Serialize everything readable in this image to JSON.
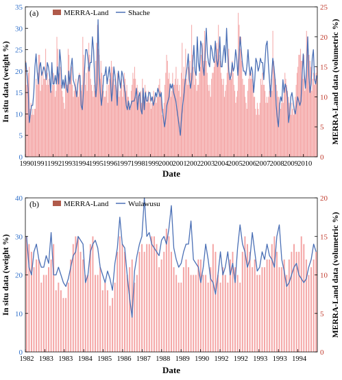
{
  "chart_data": [
    {
      "panel_label": "(a)",
      "type": "bar+line",
      "xlabel": "Date",
      "ylabel_left": "In situ data (weight %)",
      "ylabel_right": "MERRA-Land data (volumetric %)",
      "ylim_left": [
        0,
        35
      ],
      "ylim_right": [
        0,
        25
      ],
      "yticks_left": [
        "0",
        "5",
        "10",
        "15",
        "20",
        "25",
        "30",
        "35"
      ],
      "yticks_right": [
        "0",
        "5",
        "10",
        "15",
        "20",
        "25"
      ],
      "xticks": [
        "1990",
        "1991",
        "1992",
        "1993",
        "1994",
        "1995",
        "1996",
        "1997",
        "1998",
        "1999",
        "2000",
        "2001",
        "2002",
        "2003",
        "2004",
        "2005",
        "2006",
        "2007",
        "2008",
        "2009",
        "2010"
      ],
      "legend_position": "top-left",
      "series": [
        {
          "name": "MERRA-Land",
          "type": "bar",
          "axis": "right",
          "color": "#f4a4a4",
          "legend_color": "#b05a4a",
          "values": [
            16,
            12,
            13,
            14,
            15,
            8,
            9,
            7,
            8,
            7,
            8,
            8,
            13,
            12,
            14,
            17,
            17,
            11,
            14,
            12,
            15,
            13,
            13,
            18,
            12,
            14,
            12,
            13,
            13,
            12,
            11,
            12,
            14,
            12,
            10,
            11,
            20,
            18,
            13,
            14,
            15,
            12,
            11,
            10,
            9,
            8,
            13,
            12,
            12,
            18,
            17,
            13,
            14,
            15,
            12,
            10,
            11,
            12,
            13,
            11,
            11,
            10,
            14,
            12,
            11,
            12,
            20,
            17,
            15,
            12,
            14,
            11,
            15,
            19,
            17,
            13,
            12,
            11,
            10,
            12,
            11,
            16,
            19,
            22,
            18,
            17,
            13,
            16,
            14,
            12,
            11,
            10,
            10,
            11,
            12,
            9,
            12,
            13,
            14,
            16,
            15,
            14,
            13,
            12,
            13,
            11,
            14,
            12,
            10,
            11,
            12,
            13,
            10,
            12,
            14,
            13,
            11,
            12,
            10,
            10,
            9,
            8,
            11,
            12,
            14,
            13,
            15,
            13,
            10,
            12,
            11,
            10,
            10,
            11,
            9,
            13,
            11,
            10,
            12,
            11,
            9,
            10,
            11,
            9,
            10,
            8,
            9,
            10,
            11,
            9,
            10,
            9,
            10,
            10,
            12,
            13,
            11,
            10,
            7,
            8,
            9,
            12,
            14,
            17,
            16,
            13,
            14,
            12,
            10,
            11,
            14,
            12,
            12,
            13,
            15,
            12,
            13,
            11,
            12,
            10,
            14,
            19,
            13,
            15,
            13,
            18,
            13,
            12,
            15,
            12,
            16,
            14,
            22,
            17,
            15,
            12,
            14,
            13,
            11,
            12,
            12,
            14,
            15,
            17,
            18,
            19,
            16,
            21,
            18,
            16,
            14,
            12,
            11,
            12,
            10,
            13,
            14,
            14,
            15,
            16,
            17,
            19,
            18,
            22,
            17,
            16,
            14,
            13,
            12,
            13,
            10,
            11,
            12,
            14,
            17,
            18,
            13,
            14,
            13,
            16,
            14,
            12,
            11,
            9,
            10,
            11,
            24,
            22,
            18,
            20,
            16,
            13,
            12,
            12,
            10,
            9,
            8,
            11,
            13,
            14,
            13,
            14,
            13,
            12,
            10,
            10,
            8,
            7,
            9,
            8,
            7,
            9,
            13,
            12,
            14,
            12,
            12,
            11,
            9,
            10,
            9,
            10,
            11,
            12,
            13,
            11,
            21,
            16,
            14,
            13,
            12,
            11,
            10,
            10,
            9,
            8,
            9,
            10,
            9,
            11,
            14,
            13,
            12,
            11,
            10,
            9,
            8,
            7,
            9,
            8,
            7,
            8,
            10,
            12,
            14,
            15,
            17,
            17,
            18,
            16,
            16,
            13,
            17,
            11,
            12,
            21,
            20,
            18,
            17,
            16,
            15,
            11,
            13,
            14,
            12,
            13,
            14,
            15
          ]
        },
        {
          "name": "Shache",
          "type": "line",
          "axis": "left",
          "color": "#4a6fb5",
          "values": [
            22,
            19,
            16,
            8,
            10,
            12,
            12,
            15,
            21,
            24,
            20,
            17,
            21,
            22,
            19,
            20,
            21,
            20,
            18,
            22,
            21,
            19,
            15,
            22,
            17,
            17,
            19,
            17,
            21,
            17,
            25,
            22,
            16,
            18,
            16,
            19,
            16,
            15,
            20,
            17,
            21,
            23,
            18,
            17,
            16,
            14,
            17,
            19,
            19,
            12,
            11,
            15,
            20,
            25,
            25,
            23,
            20,
            22,
            22,
            28,
            25,
            18,
            14,
            17,
            32,
            20,
            15,
            12,
            15,
            19,
            19,
            21,
            17,
            19,
            21,
            18,
            13,
            16,
            21,
            19,
            16,
            12,
            20,
            18,
            16,
            20,
            19,
            17,
            15,
            12,
            11,
            13,
            11,
            12,
            13,
            13,
            13,
            14,
            16,
            11,
            14,
            15,
            11,
            10,
            16,
            11,
            15,
            13,
            13,
            15,
            15,
            13,
            14,
            12,
            13,
            15,
            14,
            16,
            15,
            14,
            15,
            11,
            9,
            7,
            9,
            12,
            13,
            14,
            17,
            16,
            17,
            15,
            14,
            13,
            11,
            9,
            7,
            5,
            9,
            12,
            14,
            17,
            19,
            21,
            24,
            18,
            16,
            18,
            22,
            26,
            20,
            19,
            28,
            22,
            20,
            27,
            26,
            21,
            19,
            24,
            30,
            24,
            22,
            21,
            26,
            25,
            23,
            22,
            27,
            23,
            21,
            23,
            28,
            21,
            21,
            24,
            26,
            22,
            30,
            24,
            20,
            18,
            19,
            22,
            20,
            21,
            25,
            23,
            19,
            23,
            28,
            25,
            22,
            20,
            20,
            19,
            21,
            25,
            21,
            19,
            21,
            20,
            15,
            18,
            23,
            22,
            20,
            21,
            23,
            22,
            22,
            18,
            22,
            26,
            27,
            22,
            18,
            14,
            19,
            23,
            21,
            18,
            12,
            9,
            7,
            12,
            14,
            13,
            18,
            15,
            17,
            16,
            14,
            8,
            10,
            14,
            15,
            13,
            11,
            10,
            12,
            14,
            13,
            12,
            13,
            19,
            24,
            19,
            16,
            21,
            28,
            19,
            15,
            17,
            23,
            25,
            18,
            17,
            19
          ]
        }
      ]
    },
    {
      "panel_label": "(b)",
      "type": "bar+line",
      "xlabel": "Date",
      "ylabel_left": "In situ data (weight %)",
      "ylabel_right": "MERRA-Land data (volumetric %)",
      "ylim_left": [
        0,
        40
      ],
      "ylim_right": [
        0,
        20
      ],
      "yticks_left": [
        "0",
        "10",
        "20",
        "30",
        "40"
      ],
      "yticks_right": [
        "0",
        "5",
        "10",
        "15",
        "20"
      ],
      "xticks": [
        "1982",
        "1983",
        "1983",
        "1984",
        "1985",
        "1986",
        "1987",
        "1988",
        "1989",
        "1990",
        "1992",
        "1992",
        "1993",
        "1993",
        "1994"
      ],
      "legend_position": "top-left",
      "series": [
        {
          "name": "MERRA-Land",
          "type": "bar",
          "axis": "right",
          "color": "#f4a4a4",
          "legend_color": "#b05a4a",
          "values": [
            15,
            14,
            13,
            11,
            12,
            12,
            9,
            10,
            10,
            11,
            12,
            14,
            8,
            9,
            8,
            7,
            7,
            9,
            12,
            14,
            15,
            15,
            13,
            12,
            10,
            10,
            14,
            15,
            10,
            10,
            11,
            8,
            9,
            8,
            6,
            7,
            9,
            13,
            15,
            14,
            13,
            10,
            11,
            12,
            9,
            10,
            13,
            14,
            13,
            14,
            14,
            15,
            15,
            14,
            11,
            12,
            13,
            16,
            15,
            13,
            11,
            10,
            9,
            9,
            11,
            12,
            11,
            10,
            10,
            10,
            12,
            12,
            10,
            10,
            9,
            11,
            14,
            13,
            10,
            9,
            11,
            10,
            9,
            12,
            13,
            11,
            10,
            9,
            13,
            15,
            14,
            13,
            11,
            12,
            10,
            10,
            11,
            11,
            12,
            12,
            14,
            15,
            13,
            11,
            11,
            12,
            10,
            12,
            13,
            14,
            13,
            13,
            15,
            14,
            12,
            10,
            11,
            12,
            13
          ]
        },
        {
          "name": "Wulawusu",
          "type": "line",
          "axis": "left",
          "color": "#4a6fb5",
          "values": [
            30,
            22,
            20,
            26,
            28,
            24,
            22,
            22,
            25,
            23,
            31,
            20,
            20,
            22,
            20,
            18,
            17,
            19,
            22,
            25,
            26,
            30,
            29,
            28,
            18,
            20,
            26,
            28,
            29,
            27,
            22,
            20,
            18,
            21,
            19,
            16,
            23,
            27,
            35,
            28,
            27,
            20,
            14,
            9,
            21,
            25,
            28,
            30,
            40,
            30,
            31,
            28,
            27,
            26,
            25,
            29,
            30,
            28,
            32,
            38,
            27,
            24,
            22,
            23,
            26,
            28,
            28,
            34,
            24,
            23,
            22,
            18,
            22,
            28,
            24,
            19,
            18,
            15,
            20,
            26,
            20,
            22,
            26,
            20,
            23,
            18,
            27,
            33,
            28,
            26,
            22,
            24,
            31,
            26,
            21,
            22,
            26,
            24,
            28,
            25,
            24,
            22,
            30,
            33,
            24,
            21,
            17,
            18,
            20,
            22,
            23,
            20,
            19,
            18,
            19,
            22,
            24,
            28,
            26
          ]
        }
      ]
    }
  ]
}
